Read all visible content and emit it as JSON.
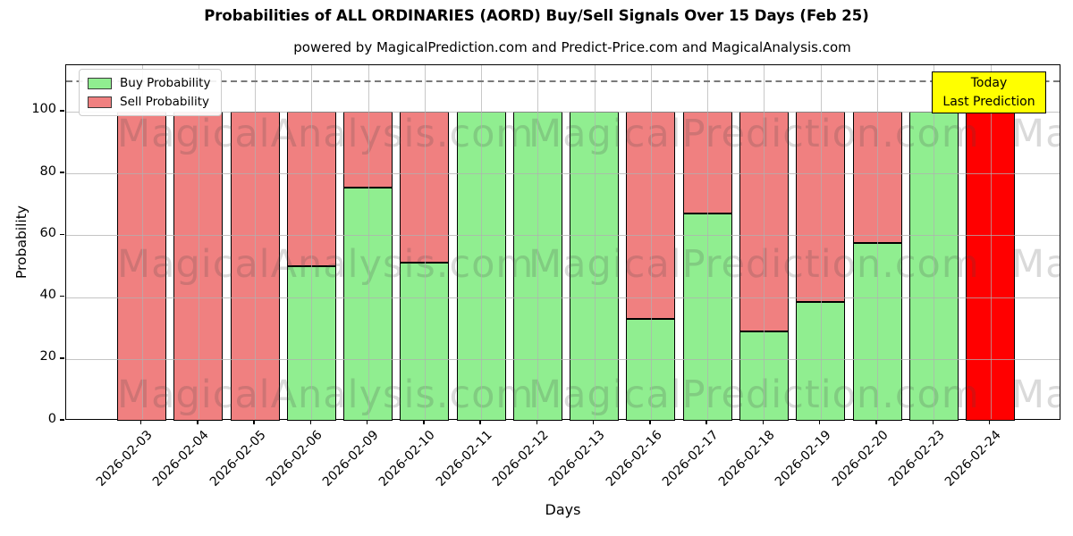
{
  "chart_data": {
    "type": "bar",
    "stacked": true,
    "title": "Probabilities of ALL ORDINARIES (AORD) Buy/Sell Signals Over 15 Days (Feb 25)",
    "subtitle": "powered by MagicalPrediction.com and Predict-Price.com and MagicalAnalysis.com",
    "xlabel": "Days",
    "ylabel": "Probability",
    "ylim": [
      0,
      115
    ],
    "yticks": [
      0,
      20,
      40,
      60,
      80,
      100
    ],
    "grid": true,
    "dashed_reference_line_y": 110,
    "categories": [
      "2026-02-03",
      "2026-02-04",
      "2026-02-05",
      "2026-02-06",
      "2026-02-09",
      "2026-02-10",
      "2026-02-11",
      "2026-02-12",
      "2026-02-13",
      "2026-02-16",
      "2026-02-17",
      "2026-02-18",
      "2026-02-19",
      "2026-02-20",
      "2026-02-23",
      "2026-02-24"
    ],
    "series": [
      {
        "name": "Buy Probability",
        "color": "#90EE90",
        "values": [
          0,
          0,
          0,
          50,
          75.5,
          51,
          100,
          100,
          100,
          33,
          67,
          29,
          38.5,
          57.5,
          100,
          0
        ]
      },
      {
        "name": "Sell Probability",
        "color": "#F08080",
        "values": [
          100,
          100,
          100,
          50,
          24.5,
          49,
          0,
          0,
          0,
          67,
          33,
          71,
          61.5,
          42.5,
          0,
          100
        ]
      }
    ],
    "highlight": {
      "index": 15,
      "category": "2026-02-24",
      "color": "#FF0000",
      "label_lines": [
        "Today",
        "Last Prediction"
      ],
      "label_bg": "#FFFF00"
    },
    "legend": {
      "position": "upper left",
      "entries": [
        {
          "label": "Buy Probability",
          "color": "#90EE90"
        },
        {
          "label": "Sell Probability",
          "color": "#F08080"
        }
      ]
    },
    "watermarks": {
      "texts": [
        "MagicalAnalysis.com",
        "MagicalPrediction.com"
      ]
    }
  }
}
